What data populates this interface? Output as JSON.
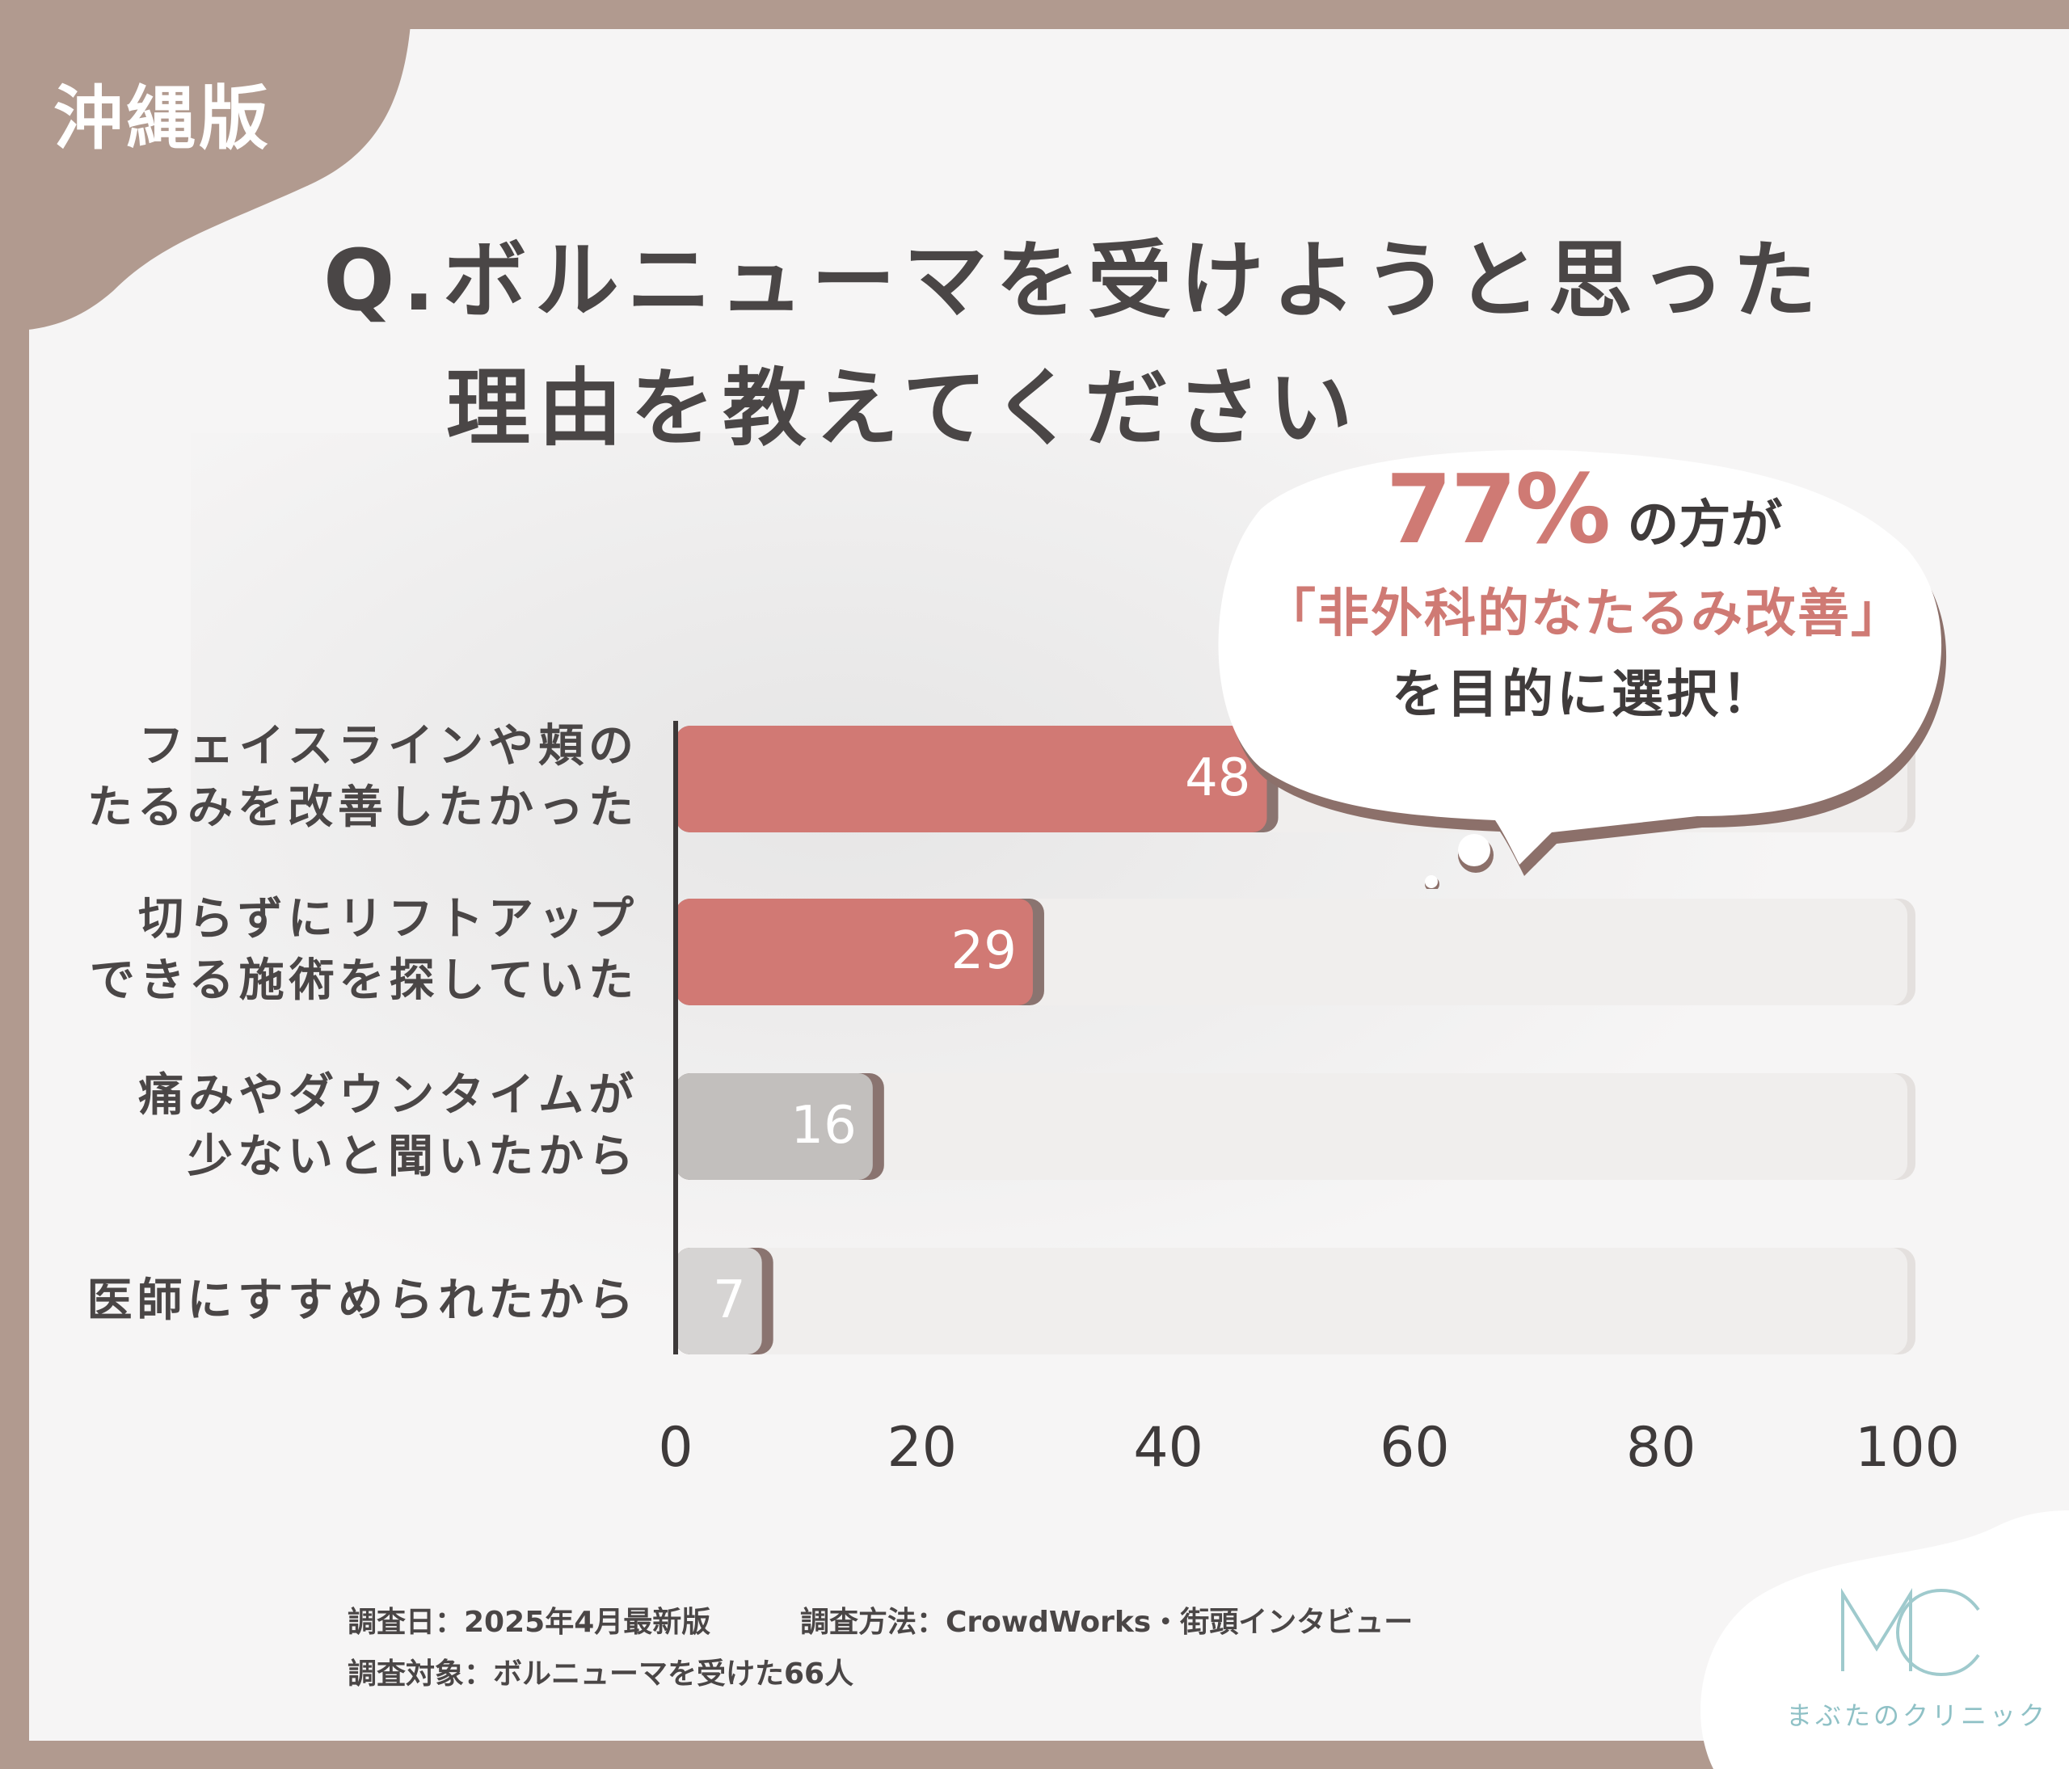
{
  "region_tag": "沖縄版",
  "title": {
    "line1": "Q.ボルニューマを受けようと思った",
    "line2": "理由を教えてください"
  },
  "callout": {
    "percent": "77%",
    "line1_suffix": "の方が",
    "line2": "「非外科的なたるみ改善」",
    "line3": "を目的に選択！"
  },
  "chart_data": {
    "type": "bar",
    "orientation": "horizontal",
    "categories": [
      [
        "フェイスラインや頬の",
        "たるみを改善したかった"
      ],
      [
        "切らずにリフトアップ",
        "できる施術を探していた"
      ],
      [
        "痛みやダウンタイムが",
        "少ないと聞いたから"
      ],
      [
        "医師にすすめられたから"
      ]
    ],
    "values": [
      48,
      29,
      16,
      7
    ],
    "value_labels": [
      "48",
      "29",
      "16",
      "7"
    ],
    "xlim": [
      0,
      100
    ],
    "x_ticks": [
      "0",
      "20",
      "40",
      "60",
      "80",
      "100"
    ],
    "grid": false,
    "bar_colors": [
      "#d17974",
      "#d17974",
      "#c2bfbd",
      "#d6d4d3"
    ],
    "track_color": "#f0eeed"
  },
  "footer": {
    "date": "調査日：2025年4月最新版",
    "method": "調査方法：CrowdWorks・街頭インタビュー",
    "subject": "調査対象：ボルニューマを受けた66人"
  },
  "logo": {
    "mark": "MC",
    "name": "まぶたのクリニック"
  }
}
